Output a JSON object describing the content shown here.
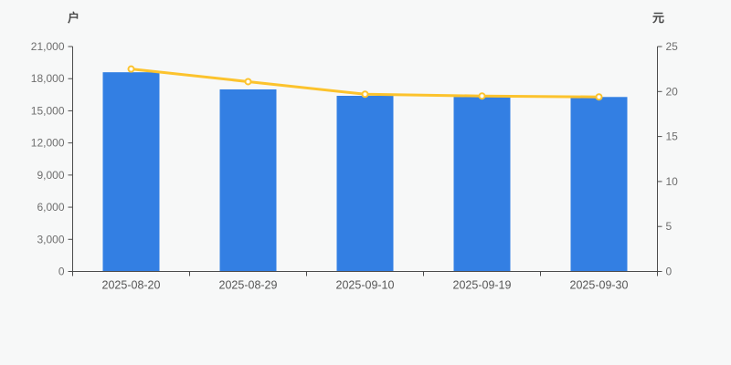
{
  "chart_data": {
    "type": "bar",
    "categories": [
      "2025-08-20",
      "2025-08-29",
      "2025-09-10",
      "2025-09-19",
      "2025-09-30"
    ],
    "series": [
      {
        "name": "holder-count-bars",
        "type": "bar",
        "axis": "left",
        "values": [
          18600,
          17000,
          16400,
          16300,
          16290
        ],
        "color": "#337fe3"
      },
      {
        "name": "price-line",
        "type": "line",
        "axis": "right",
        "values": [
          22.5,
          21.1,
          19.7,
          19.5,
          19.4
        ],
        "color": "#fcc32d",
        "marker_fill": "#ffffff"
      }
    ],
    "left_axis": {
      "name": "户",
      "min": 0,
      "max": 21000,
      "step": 3000,
      "tick_labels": [
        "0",
        "3,000",
        "6,000",
        "9,000",
        "12,000",
        "15,000",
        "18,000",
        "21,000"
      ]
    },
    "right_axis": {
      "name": "元",
      "min": 0,
      "max": 25,
      "step": 5,
      "tick_labels": [
        "0",
        "5",
        "10",
        "15",
        "20",
        "25"
      ]
    },
    "grid": false,
    "legend": false,
    "title": ""
  },
  "colors": {
    "background": "#f7f8f8",
    "bar": "#337fe3",
    "line": "#fcc32d",
    "axis_line": "#4c4c4c",
    "tick_text": "#6e6e6e",
    "x_text": "#565656",
    "axis_name_text": "#4a4a4a"
  }
}
